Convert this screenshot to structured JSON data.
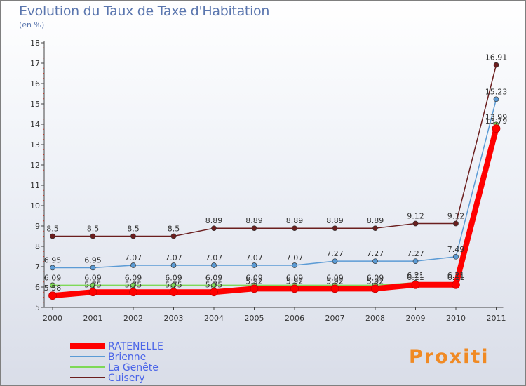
{
  "title": "Evolution du Taux de Taxe d'Habitation",
  "subtitle": "(en %)",
  "brand": "Proxiti",
  "chart_data": {
    "type": "line",
    "title": "Evolution du Taux de Taxe d'Habitation",
    "ylabel": "(en %)",
    "categories": [
      "2000",
      "2001",
      "2002",
      "2003",
      "2004",
      "2005",
      "2006",
      "2007",
      "2008",
      "2009",
      "2010",
      "2011"
    ],
    "yticks": [
      5,
      6,
      7,
      8,
      9,
      10,
      11,
      12,
      13,
      14,
      15,
      16,
      17,
      18
    ],
    "ylim": [
      5,
      18
    ],
    "series": [
      {
        "name": "Cuisery",
        "color": "#6b1e1e",
        "values": [
          8.5,
          8.5,
          8.5,
          8.5,
          8.89,
          8.89,
          8.89,
          8.89,
          8.89,
          9.12,
          9.12,
          16.91
        ],
        "labels": [
          "8.5",
          "8.5",
          "8.5",
          "8.5",
          "8.89",
          "8.89",
          "8.89",
          "8.89",
          "8.89",
          "9.12",
          "9.12",
          "16.91"
        ]
      },
      {
        "name": "Brienne",
        "color": "#5b9bd5",
        "values": [
          6.95,
          6.95,
          7.07,
          7.07,
          7.07,
          7.07,
          7.07,
          7.27,
          7.27,
          7.27,
          7.49,
          15.23
        ],
        "labels": [
          "6.95",
          "6.95",
          "7.07",
          "7.07",
          "7.07",
          "7.07",
          "7.07",
          "7.27",
          "7.27",
          "7.27",
          "7.49",
          "15.23"
        ]
      },
      {
        "name": "La Genête",
        "color": "#7ed957",
        "values": [
          6.09,
          6.09,
          6.09,
          6.09,
          6.09,
          6.09,
          6.09,
          6.09,
          6.09,
          6.21,
          6.21,
          13.99
        ],
        "labels": [
          "6.09",
          "6.09",
          "6.09",
          "6.09",
          "6.09",
          "6.09",
          "6.09",
          "6.09",
          "6.09",
          "6.21",
          "6.21",
          "13.99"
        ]
      },
      {
        "name": "RATENELLE",
        "color": "#ff0000",
        "values": [
          5.58,
          5.75,
          5.75,
          5.75,
          5.75,
          5.92,
          5.92,
          5.92,
          5.92,
          6.11,
          6.11,
          13.79
        ],
        "labels": [
          "5.58",
          "5.75",
          "5.75",
          "5.75",
          "5.75",
          "5.92",
          "5.92",
          "5.92",
          "5.92",
          "6.11",
          "6.11",
          "13.79"
        ]
      }
    ],
    "legend": [
      "RATENELLE",
      "Brienne",
      "La Genête",
      "Cuisery"
    ],
    "legend_position": "bottom-left",
    "grid": false
  }
}
